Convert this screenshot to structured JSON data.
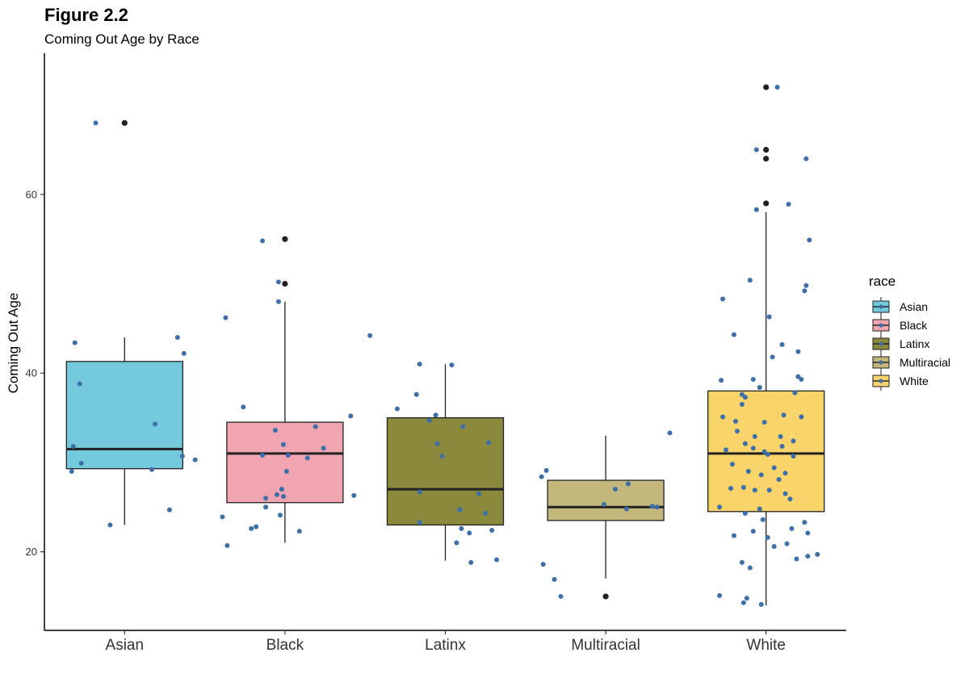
{
  "chart_data": {
    "type": "box",
    "title": "Figure 2.2",
    "subtitle": "Coming Out Age by Race",
    "xlabel": "",
    "ylabel": "Coming Out Age",
    "ylim": [
      11.2,
      75.8
    ],
    "yticks": [
      20,
      40,
      60
    ],
    "grid": false,
    "legend": {
      "title": "race",
      "position": "right"
    },
    "point_color": "#3d6fa8",
    "outlier_color": "#222222",
    "categories": [
      "Asian",
      "Black",
      "Latinx",
      "Multiracial",
      "White"
    ],
    "series": [
      {
        "name": "Asian",
        "fill": "#75c9dc",
        "whisker_low": 23,
        "q1": 29.3,
        "median": 31.5,
        "q3": 41.3,
        "whisker_high": 44,
        "outliers": [
          68
        ],
        "points": [
          [
            -0.18,
            68
          ],
          [
            -0.31,
            43.4
          ],
          [
            0.33,
            44
          ],
          [
            0.37,
            42.2
          ],
          [
            -0.28,
            38.8
          ],
          [
            0.19,
            34.3
          ],
          [
            -0.32,
            31.8
          ],
          [
            -0.27,
            29.9
          ],
          [
            0.36,
            30.7
          ],
          [
            0.44,
            30.3
          ],
          [
            0.17,
            29.2
          ],
          [
            -0.33,
            29
          ],
          [
            -0.09,
            23
          ],
          [
            0.28,
            24.7
          ]
        ]
      },
      {
        "name": "Black",
        "fill": "#f0a5b0",
        "whisker_low": 21,
        "q1": 25.5,
        "median": 31,
        "q3": 34.5,
        "whisker_high": 48,
        "outliers": [
          55,
          50
        ],
        "points": [
          [
            -0.14,
            54.8
          ],
          [
            -0.04,
            50.2
          ],
          [
            -0.37,
            46.2
          ],
          [
            -0.04,
            48
          ],
          [
            0.53,
            44.2
          ],
          [
            -0.26,
            36.2
          ],
          [
            -0.06,
            33.6
          ],
          [
            0.19,
            34
          ],
          [
            0.41,
            35.2
          ],
          [
            -0.01,
            32
          ],
          [
            0.24,
            31.6
          ],
          [
            -0.14,
            30.8
          ],
          [
            0.02,
            30.8
          ],
          [
            0.14,
            30.5
          ],
          [
            0.01,
            29
          ],
          [
            -0.02,
            27
          ],
          [
            -0.05,
            26.4
          ],
          [
            -0.01,
            26.2
          ],
          [
            -0.12,
            26
          ],
          [
            0.43,
            26.3
          ],
          [
            -0.12,
            25
          ],
          [
            -0.03,
            24.1
          ],
          [
            -0.39,
            23.9
          ],
          [
            -0.18,
            22.8
          ],
          [
            -0.21,
            22.6
          ],
          [
            0.09,
            22.3
          ],
          [
            -0.36,
            20.7
          ]
        ]
      },
      {
        "name": "Latinx",
        "fill": "#8a893c",
        "whisker_low": 19,
        "q1": 23,
        "median": 27,
        "q3": 35,
        "whisker_high": 41,
        "outliers": [],
        "points": [
          [
            -0.16,
            41
          ],
          [
            0.04,
            40.9
          ],
          [
            -0.18,
            37.6
          ],
          [
            -0.3,
            36
          ],
          [
            0.11,
            34
          ],
          [
            -0.06,
            35.3
          ],
          [
            -0.1,
            34.7
          ],
          [
            -0.05,
            32.1
          ],
          [
            0.27,
            32.2
          ],
          [
            -0.02,
            30.7
          ],
          [
            -0.16,
            26.7
          ],
          [
            0.21,
            26.5
          ],
          [
            0.09,
            24.7
          ],
          [
            0.25,
            24.3
          ],
          [
            -0.16,
            23.3
          ],
          [
            0.29,
            22.4
          ],
          [
            0.15,
            22.1
          ],
          [
            0.1,
            22.6
          ],
          [
            0.07,
            21
          ],
          [
            0.16,
            18.8
          ],
          [
            0.32,
            19.1
          ]
        ]
      },
      {
        "name": "Multiracial",
        "fill": "#c4b77b",
        "whisker_low": 17,
        "q1": 23.5,
        "median": 25,
        "q3": 28,
        "whisker_high": 33,
        "outliers": [
          15
        ],
        "points": [
          [
            0.4,
            33.3
          ],
          [
            -0.37,
            29.1
          ],
          [
            -0.4,
            28.4
          ],
          [
            0.14,
            27.6
          ],
          [
            0.06,
            27
          ],
          [
            -0.01,
            25.3
          ],
          [
            0.13,
            24.8
          ],
          [
            0.32,
            25
          ],
          [
            0.29,
            25.1
          ],
          [
            -0.39,
            18.6
          ],
          [
            -0.32,
            16.9
          ],
          [
            -0.28,
            15
          ]
        ]
      },
      {
        "name": "White",
        "fill": "#f8d46a",
        "whisker_low": 14,
        "q1": 24.5,
        "median": 31,
        "q3": 38,
        "whisker_high": 58,
        "outliers": [
          72,
          65,
          64,
          59
        ],
        "points": [
          [
            0.07,
            72
          ],
          [
            -0.06,
            65
          ],
          [
            0.25,
            64
          ],
          [
            -0.06,
            58.3
          ],
          [
            0.14,
            58.9
          ],
          [
            0.27,
            54.9
          ],
          [
            -0.1,
            50.4
          ],
          [
            0.02,
            46.3
          ],
          [
            0.25,
            49.8
          ],
          [
            0.24,
            49.2
          ],
          [
            -0.27,
            48.3
          ],
          [
            -0.2,
            44.3
          ],
          [
            0.1,
            43.2
          ],
          [
            0.2,
            42.4
          ],
          [
            0.04,
            41.8
          ],
          [
            0.2,
            39.6
          ],
          [
            0.22,
            39.3
          ],
          [
            -0.28,
            39.2
          ],
          [
            -0.08,
            39.3
          ],
          [
            -0.04,
            38.4
          ],
          [
            -0.15,
            37.6
          ],
          [
            0.18,
            37.8
          ],
          [
            -0.13,
            37.3
          ],
          [
            -0.15,
            36.5
          ],
          [
            0.11,
            35.3
          ],
          [
            -0.27,
            35.1
          ],
          [
            0.22,
            35.1
          ],
          [
            -0.19,
            34.6
          ],
          [
            -0.01,
            34.5
          ],
          [
            -0.18,
            33.5
          ],
          [
            0.09,
            32.9
          ],
          [
            0.17,
            32.4
          ],
          [
            -0.07,
            32.9
          ],
          [
            -0.13,
            32.1
          ],
          [
            -0.25,
            31.4
          ],
          [
            0.1,
            31.8
          ],
          [
            -0.08,
            31.6
          ],
          [
            0.01,
            30.9
          ],
          [
            -0.01,
            31.2
          ],
          [
            0.17,
            30.7
          ],
          [
            -0.21,
            29.8
          ],
          [
            0.05,
            29.4
          ],
          [
            -0.11,
            29
          ],
          [
            0.12,
            28.8
          ],
          [
            -0.03,
            28.6
          ],
          [
            0.08,
            28.1
          ],
          [
            -0.22,
            27.1
          ],
          [
            -0.07,
            26.9
          ],
          [
            0.02,
            26.9
          ],
          [
            -0.14,
            27.2
          ],
          [
            0.12,
            26.5
          ],
          [
            0.15,
            25.9
          ],
          [
            -0.29,
            25
          ],
          [
            -0.04,
            24.8
          ],
          [
            -0.13,
            24.3
          ],
          [
            -0.02,
            23.6
          ],
          [
            0.24,
            23.3
          ],
          [
            0.16,
            22.6
          ],
          [
            0.26,
            22.1
          ],
          [
            0.01,
            21.6
          ],
          [
            -0.08,
            22.3
          ],
          [
            -0.2,
            21.8
          ],
          [
            0.13,
            20.9
          ],
          [
            0.05,
            20.6
          ],
          [
            0.26,
            19.5
          ],
          [
            0.32,
            19.7
          ],
          [
            0.19,
            19.2
          ],
          [
            -0.15,
            18.8
          ],
          [
            -0.1,
            18.2
          ],
          [
            -0.29,
            15.1
          ],
          [
            -0.12,
            14.8
          ],
          [
            -0.14,
            14.3
          ],
          [
            -0.03,
            14.1
          ]
        ]
      }
    ]
  }
}
